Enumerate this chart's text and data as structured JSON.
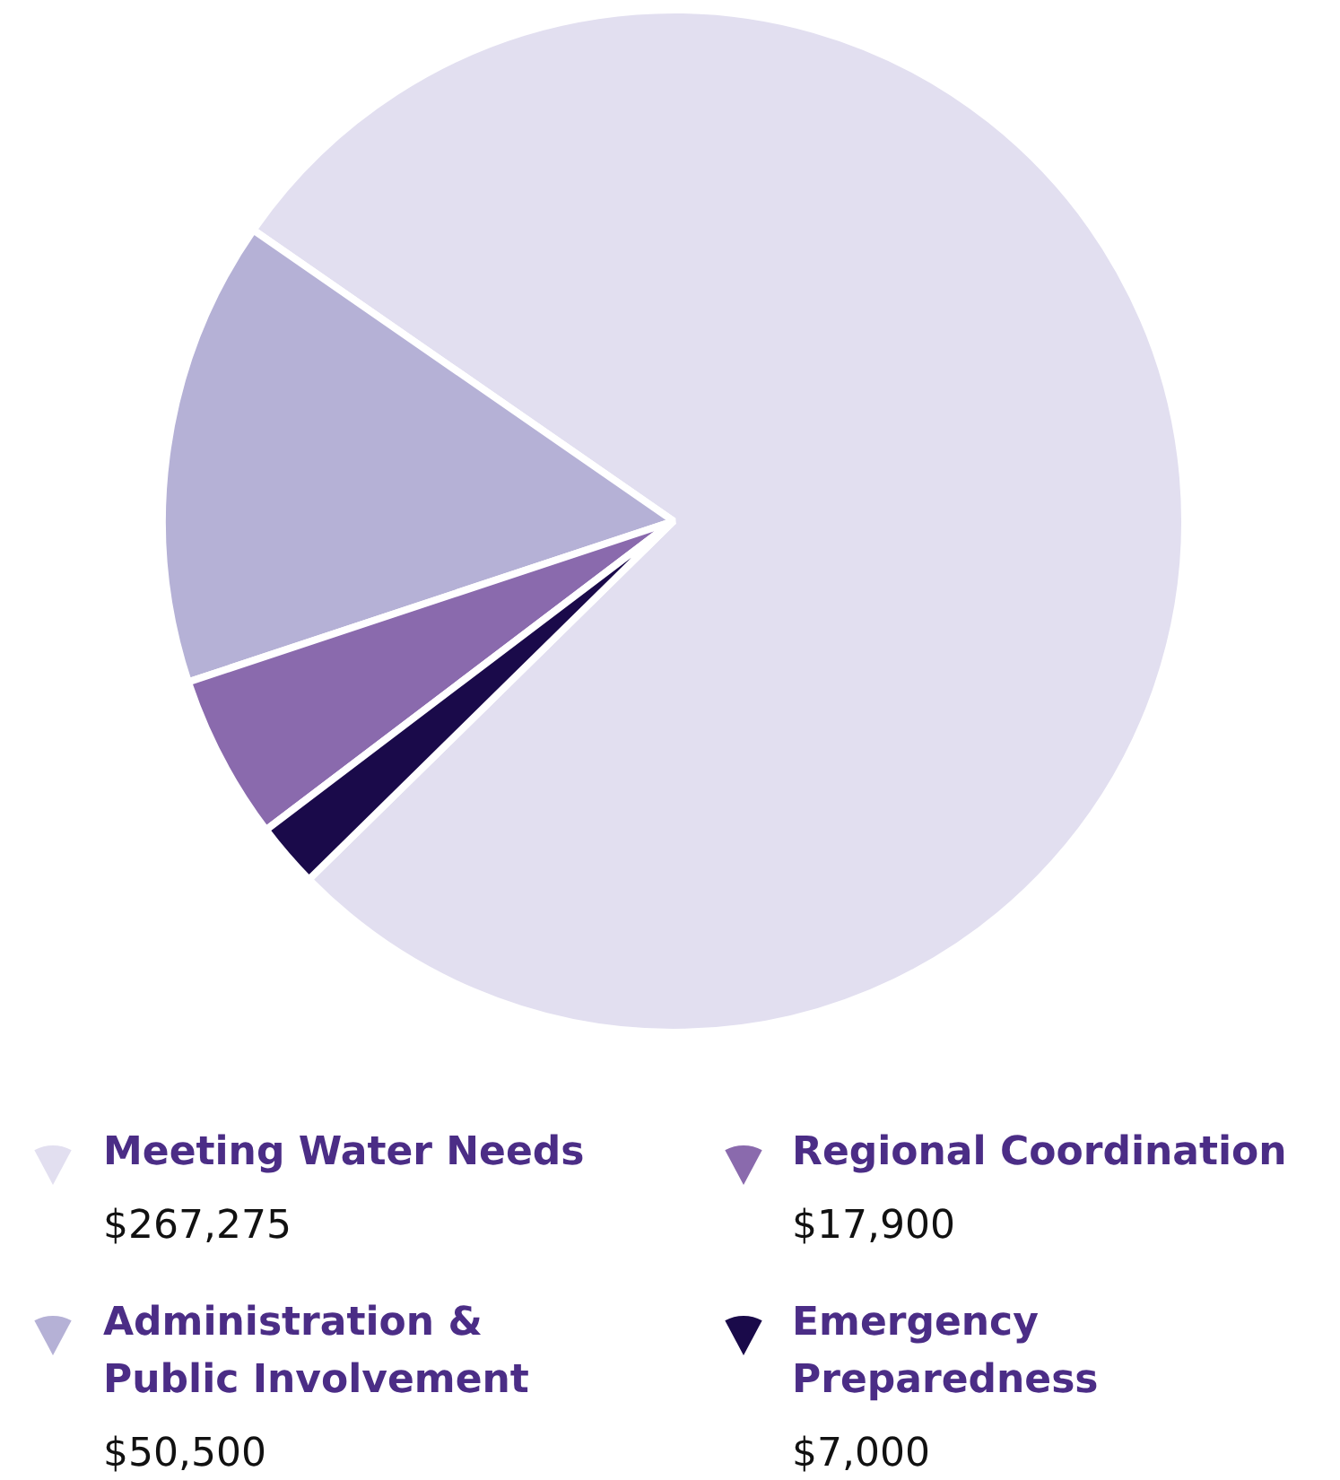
{
  "chart_data": {
    "type": "pie",
    "categories": [
      "Meeting Water Needs",
      "Administration & Public Involvement",
      "Regional Coordination",
      "Emergency Preparedness"
    ],
    "values": [
      267275,
      50500,
      17900,
      7000
    ],
    "value_labels": [
      "$267,275",
      "$50,500",
      "$17,900",
      "$7,000"
    ],
    "colors": [
      "#e2dff0",
      "#b5b1d6",
      "#8a6aad",
      "#1a0a4a"
    ],
    "legend": "bottom"
  }
}
